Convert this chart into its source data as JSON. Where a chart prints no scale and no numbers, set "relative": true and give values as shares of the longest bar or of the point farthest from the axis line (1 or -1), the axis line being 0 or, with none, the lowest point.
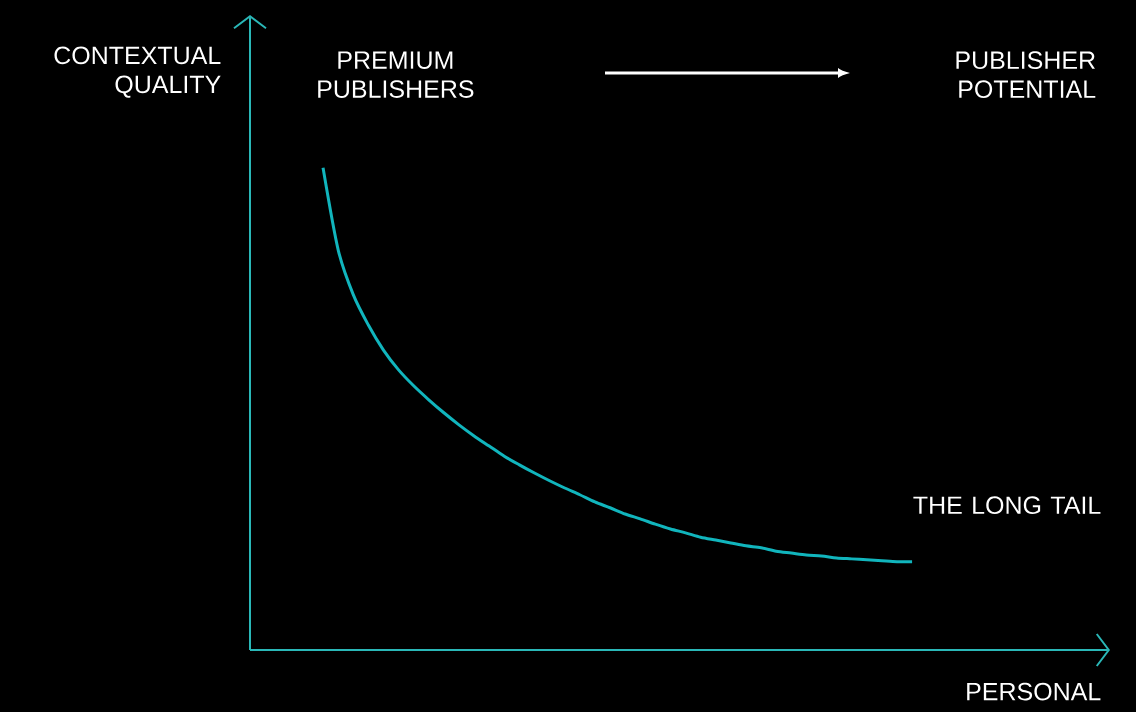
{
  "chart_data": {
    "type": "line",
    "relative": true,
    "categories": [
      null,
      null,
      null,
      null,
      null,
      null,
      null,
      null,
      null,
      null,
      null,
      null,
      null,
      null,
      null,
      null,
      null,
      null,
      null,
      null,
      null,
      null,
      null,
      null,
      null,
      null,
      null,
      null,
      null,
      null,
      null,
      null,
      null,
      null,
      null,
      null,
      null,
      null,
      null,
      null
    ],
    "series": [
      {
        "color": "#11b5bd",
        "values": [
          1,
          0.83,
          0.737,
          0.674,
          0.622,
          0.581,
          0.548,
          0.519,
          0.492,
          0.467,
          0.444,
          0.423,
          0.402,
          0.384,
          0.367,
          0.351,
          0.336,
          0.322,
          0.307,
          0.295,
          0.282,
          0.272,
          0.261,
          0.251,
          0.243,
          0.234,
          0.228,
          0.222,
          0.216,
          0.212,
          0.205,
          0.201,
          0.197,
          0.195,
          0.191,
          0.189,
          0.187,
          0.185,
          0.183,
          0.183
        ]
      }
    ],
    "xlabel": "PERSONAL",
    "ylabel": "CONTEXTUAL QUALITY",
    "annotations": [
      "PREMIUM PUBLISHERS",
      "PUBLISHER POTENTIAL",
      "THE LONG TAIL"
    ],
    "marker": "none",
    "line_style": "solid"
  }
}
